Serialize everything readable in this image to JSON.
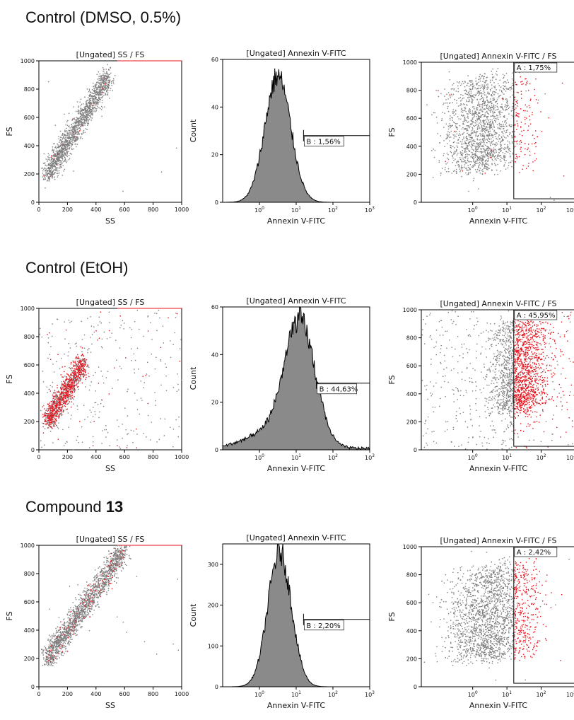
{
  "sections": [
    {
      "title": "Control (DMSO, 0.5%)",
      "title_bold": "",
      "panels": [
        {
          "type": "scatter",
          "title": "[Ungated] SS / FS",
          "xlabel": "SS",
          "ylabel": "FS",
          "xlim": [
            0,
            1000
          ],
          "ylim": [
            0,
            1000
          ],
          "xticks": [
            0,
            200,
            400,
            600,
            800,
            1000
          ],
          "yticks": [
            0,
            200,
            400,
            600,
            800,
            1000
          ],
          "cloud": {
            "mode": "ss",
            "n": 1600,
            "spread": 1.0,
            "red_fraction": 0.02
          },
          "noise": {
            "n": 8,
            "red_fraction": 0
          }
        },
        {
          "type": "histogram",
          "title": "[Ungated] Annexin V-FITC",
          "xlabel": "Annexin V-FITC",
          "ylabel": "Count",
          "ylim": [
            0,
            60
          ],
          "yticks": [
            0,
            20,
            40,
            60
          ],
          "xlim_log": [
            -1,
            3
          ],
          "peak_log": 0.5,
          "width": 0.35,
          "height": 53,
          "gate": {
            "label": "B : 1,56%",
            "x_log": 1.2,
            "y": 28
          }
        },
        {
          "type": "scatter_log",
          "title": "[Ungated] Annexin V-FITC / FS",
          "xlabel": "Annexin V-FITC",
          "ylabel": "FS",
          "ylim": [
            0,
            1000
          ],
          "yticks": [
            0,
            200,
            400,
            600,
            800,
            1000
          ],
          "xlim_log": [
            -1.5,
            3
          ],
          "cloud": {
            "cx": 0.25,
            "sx": 0.55,
            "cy": 260,
            "n": 1700,
            "red_fraction": 0.01,
            "gate_red": 60
          },
          "noise": {
            "n": 20,
            "red_fraction": 0
          },
          "gate": {
            "label": "A : 1,75%",
            "x_log": 1.2,
            "y_low": 25,
            "y_high": 1000
          }
        }
      ]
    },
    {
      "title": "Control (EtOH)",
      "title_bold": "",
      "panels": [
        {
          "type": "scatter",
          "title": "[Ungated] SS / FS",
          "xlabel": "SS",
          "ylabel": "FS",
          "xlim": [
            0,
            1000
          ],
          "ylim": [
            0,
            1000
          ],
          "xticks": [
            0,
            200,
            400,
            600,
            800,
            1000
          ],
          "yticks": [
            0,
            200,
            400,
            600,
            800,
            1000
          ],
          "cloud": {
            "mode": "ss",
            "n": 1200,
            "spread": 0.6,
            "red_fraction": 0.7
          },
          "noise": {
            "n": 320,
            "red_fraction": 0.15
          }
        },
        {
          "type": "histogram",
          "title": "[Ungated] Annexin V-FITC",
          "xlabel": "Annexin V-FITC",
          "ylabel": "Count",
          "ylim": [
            0,
            60
          ],
          "yticks": [
            0,
            20,
            40,
            60
          ],
          "xlim_log": [
            -1,
            3
          ],
          "peak_log": 1.1,
          "width": 0.42,
          "height": 52,
          "tail": 6,
          "gate": {
            "label": "B : 44,63%",
            "x_log": 1.55,
            "y": 28
          }
        },
        {
          "type": "scatter_log",
          "title": "[Ungated] Annexin V-FITC / FS",
          "xlabel": "Annexin V-FITC",
          "ylabel": "FS",
          "ylim": [
            0,
            1000
          ],
          "yticks": [
            0,
            200,
            400,
            600,
            800,
            1000
          ],
          "xlim_log": [
            -1.5,
            3
          ],
          "cloud": {
            "cx": 1.35,
            "sx": 0.4,
            "cy": 300,
            "n": 1700,
            "red_fraction": 0.0,
            "gate_red": 1
          },
          "noise": {
            "n": 480,
            "red_fraction": 0.35
          },
          "gate": {
            "label": "A : 45,95%",
            "x_log": 1.2,
            "y_low": 25,
            "y_high": 1000
          }
        }
      ]
    },
    {
      "title": "Compound ",
      "title_bold": "13",
      "panels": [
        {
          "type": "scatter",
          "title": "[Ungated] SS / FS",
          "xlabel": "SS",
          "ylabel": "FS",
          "xlim": [
            0,
            1000
          ],
          "ylim": [
            0,
            1000
          ],
          "xticks": [
            0,
            200,
            400,
            600,
            800,
            1000
          ],
          "yticks": [
            0,
            200,
            400,
            600,
            800,
            1000
          ],
          "cloud": {
            "mode": "ss",
            "n": 2200,
            "spread": 1.25,
            "red_fraction": 0.08
          },
          "noise": {
            "n": 12,
            "red_fraction": 0
          }
        },
        {
          "type": "histogram",
          "title": "[Ungated] Annexin V-FITC",
          "xlabel": "Annexin V-FITC",
          "ylabel": "Count",
          "ylim": [
            0,
            350
          ],
          "yticks": [
            0,
            100,
            200,
            300
          ],
          "xlim_log": [
            -1,
            3
          ],
          "peak_log": 0.55,
          "width": 0.32,
          "height": 330,
          "gate": {
            "label": "B : 2,20%",
            "x_log": 1.2,
            "y": 165
          }
        },
        {
          "type": "scatter_log",
          "title": "[Ungated] Annexin V-FITC / FS",
          "xlabel": "Annexin V-FITC",
          "ylabel": "FS",
          "ylim": [
            0,
            1000
          ],
          "yticks": [
            0,
            200,
            400,
            600,
            800,
            1000
          ],
          "xlim_log": [
            -1.5,
            3
          ],
          "cloud": {
            "cx": 0.45,
            "sx": 0.6,
            "cy": 230,
            "n": 2100,
            "red_fraction": 0.0,
            "gate_red": 140
          },
          "noise": {
            "n": 20,
            "red_fraction": 0
          },
          "gate": {
            "label": "A : 2,42%",
            "x_log": 1.2,
            "y_low": 25,
            "y_high": 1000
          }
        }
      ]
    }
  ],
  "chart_data": [
    {
      "type": "scatter",
      "title": "[Ungated] SS / FS",
      "xlabel": "SS",
      "ylabel": "FS",
      "xlim": [
        0,
        1000
      ],
      "ylim": [
        0,
        1000
      ]
    },
    {
      "type": "bar",
      "title": "[Ungated] Annexin V-FITC",
      "xlabel": "Annexin V-FITC",
      "ylabel": "Count",
      "ylim": [
        0,
        60
      ],
      "x_scale": "log",
      "xlim": [
        0.1,
        1000
      ],
      "gate": {
        "name": "B",
        "percent": "1,56%"
      }
    },
    {
      "type": "scatter",
      "title": "[Ungated] Annexin V-FITC / FS",
      "xlabel": "Annexin V-FITC",
      "ylabel": "FS",
      "x_scale": "log",
      "ylim": [
        0,
        1000
      ],
      "gate": {
        "name": "A",
        "percent": "1,75%"
      }
    },
    {
      "type": "scatter",
      "title": "[Ungated] SS / FS",
      "xlabel": "SS",
      "ylabel": "FS",
      "xlim": [
        0,
        1000
      ],
      "ylim": [
        0,
        1000
      ]
    },
    {
      "type": "bar",
      "title": "[Ungated] Annexin V-FITC",
      "xlabel": "Annexin V-FITC",
      "ylabel": "Count",
      "ylim": [
        0,
        60
      ],
      "x_scale": "log",
      "xlim": [
        0.1,
        1000
      ],
      "gate": {
        "name": "B",
        "percent": "44,63%"
      }
    },
    {
      "type": "scatter",
      "title": "[Ungated] Annexin V-FITC / FS",
      "xlabel": "Annexin V-FITC",
      "ylabel": "FS",
      "x_scale": "log",
      "ylim": [
        0,
        1000
      ],
      "gate": {
        "name": "A",
        "percent": "45,95%"
      }
    },
    {
      "type": "scatter",
      "title": "[Ungated] SS / FS",
      "xlabel": "SS",
      "ylabel": "FS",
      "xlim": [
        0,
        1000
      ],
      "ylim": [
        0,
        1000
      ]
    },
    {
      "type": "bar",
      "title": "[Ungated] Annexin V-FITC",
      "xlabel": "Annexin V-FITC",
      "ylabel": "Count",
      "ylim": [
        0,
        350
      ],
      "x_scale": "log",
      "xlim": [
        0.1,
        1000
      ],
      "gate": {
        "name": "B",
        "percent": "2,20%"
      }
    },
    {
      "type": "scatter",
      "title": "[Ungated] Annexin V-FITC / FS",
      "xlabel": "Annexin V-FITC",
      "ylabel": "FS",
      "x_scale": "log",
      "ylim": [
        0,
        1000
      ],
      "gate": {
        "name": "A",
        "percent": "2,42%"
      }
    }
  ],
  "colors": {
    "grey_dots": "#7f7f7f",
    "red_dots": "#e8101a",
    "histogram_fill": "#8a8a8a",
    "histogram_line": "#000000"
  }
}
